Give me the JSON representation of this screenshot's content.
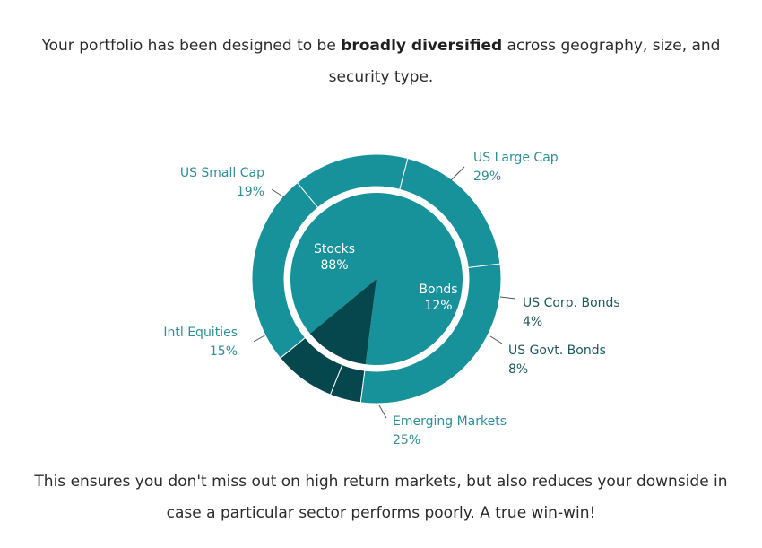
{
  "intro": {
    "before": "Your portfolio has been designed to be ",
    "bold": "broadly diversified",
    "after": " across geography, size, and security type."
  },
  "outro": {
    "text": "This ensures you don't miss out on high return markets, but also reduces your downside in case a particular sector performs poorly. A true win-win!"
  },
  "colors": {
    "stocks": "#17919a",
    "bonds": "#06474d",
    "separator": "#ffffff",
    "leader": "#555555"
  },
  "chart_data": {
    "type": "pie",
    "title": "",
    "inner": [
      {
        "label": "Stocks",
        "value": 88,
        "display": "88%"
      },
      {
        "label": "Bonds",
        "value": 12,
        "display": "12%"
      }
    ],
    "outer": [
      {
        "label": "US Large Cap",
        "value": 29,
        "display": "29%",
        "group": "Stocks"
      },
      {
        "label": "US Corp. Bonds",
        "value": 4,
        "display": "4%",
        "group": "Bonds"
      },
      {
        "label": "US Govt. Bonds",
        "value": 8,
        "display": "8%",
        "group": "Bonds"
      },
      {
        "label": "Emerging Markets",
        "value": 25,
        "display": "25%",
        "group": "Stocks"
      },
      {
        "label": "Intl Equities",
        "value": 15,
        "display": "15%",
        "group": "Stocks"
      },
      {
        "label": "US Small Cap",
        "value": 19,
        "display": "19%",
        "group": "Stocks"
      }
    ]
  }
}
